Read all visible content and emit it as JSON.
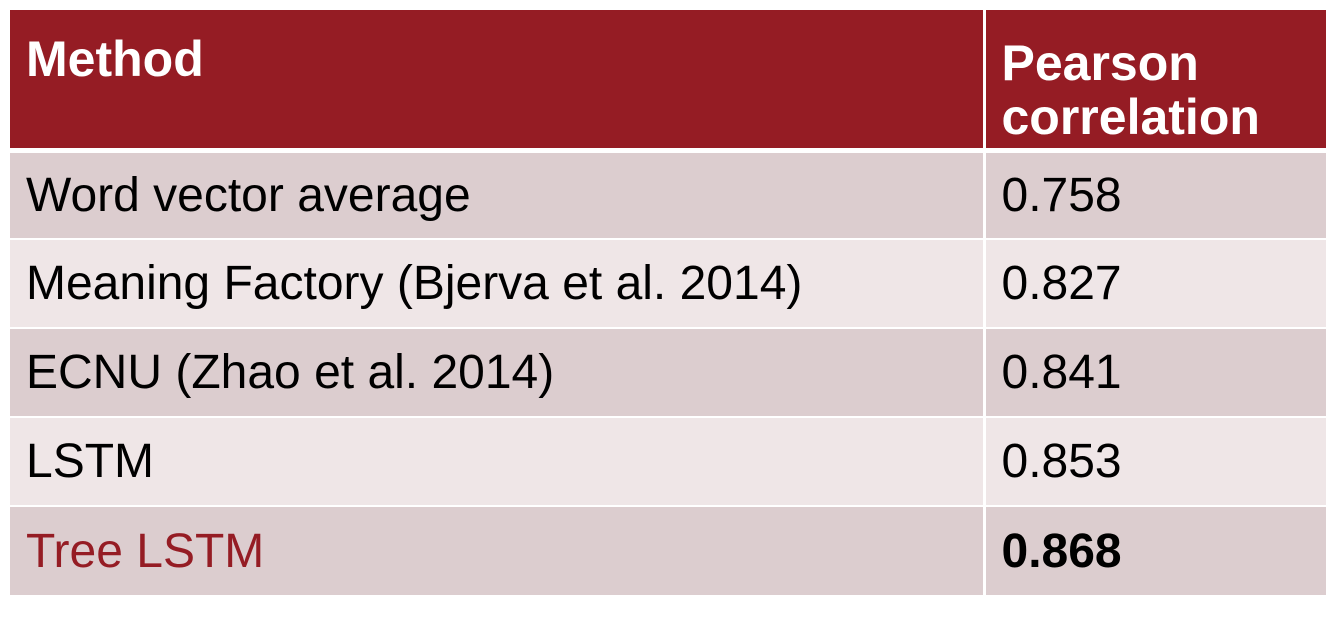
{
  "table": {
    "headers": {
      "method": "Method",
      "score_line1": "Pearson",
      "score_line2": "correlation"
    },
    "rows": [
      {
        "method": "Word vector average",
        "score": "0.758"
      },
      {
        "method": "Meaning Factory (Bjerva et al. 2014)",
        "score": "0.827"
      },
      {
        "method": "ECNU (Zhao et al. 2014)",
        "score": "0.841"
      },
      {
        "method": "LSTM",
        "score": "0.853"
      },
      {
        "method": "Tree LSTM",
        "score": "0.868"
      }
    ]
  },
  "colors": {
    "header_bg": "#951c24",
    "row_odd_bg": "#dccdcf",
    "row_even_bg": "#efe6e7",
    "highlight_text": "#951c24"
  }
}
